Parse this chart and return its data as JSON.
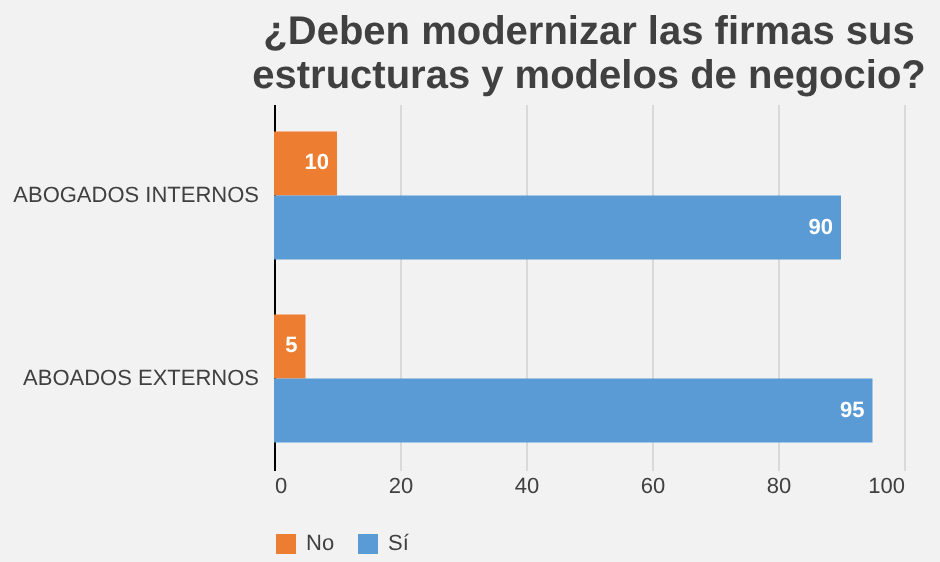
{
  "chart_data": {
    "type": "bar",
    "orientation": "horizontal",
    "title": "¿Deben modernizar las firmas sus estructuras y modelos de negocio?",
    "categories": [
      "ABOGADOS INTERNOS",
      "ABOADOS EXTERNOS"
    ],
    "series": [
      {
        "name": "No",
        "color": "#ed7d31",
        "values": [
          10,
          5
        ]
      },
      {
        "name": "Sí",
        "color": "#5b9bd5",
        "values": [
          90,
          95
        ]
      }
    ],
    "xlim": [
      0,
      100
    ],
    "xticks": [
      0,
      20,
      40,
      60,
      80,
      100
    ],
    "grid": "x",
    "legend": "bottom",
    "data_labels": true
  }
}
